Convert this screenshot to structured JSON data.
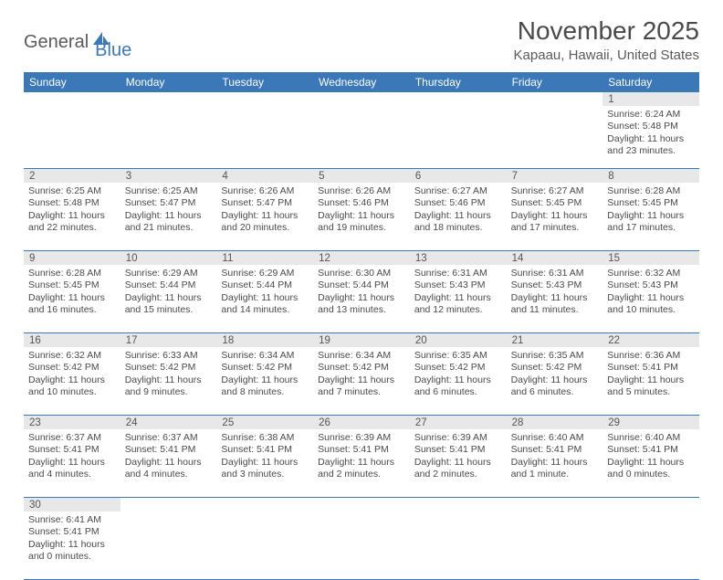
{
  "logo": {
    "text1": "General",
    "text2": "Blue"
  },
  "title": "November 2025",
  "location": "Kapaau, Hawaii, United States",
  "colors": {
    "header_bg": "#3b78b8",
    "header_text": "#ffffff",
    "daynum_bg": "#e8e8e8",
    "text": "#4a4a4a",
    "border": "#3b78b8"
  },
  "day_headers": [
    "Sunday",
    "Monday",
    "Tuesday",
    "Wednesday",
    "Thursday",
    "Friday",
    "Saturday"
  ],
  "weeks": [
    [
      null,
      null,
      null,
      null,
      null,
      null,
      {
        "n": "1",
        "sunrise": "6:24 AM",
        "sunset": "5:48 PM",
        "daylight": "11 hours and 23 minutes."
      }
    ],
    [
      {
        "n": "2",
        "sunrise": "6:25 AM",
        "sunset": "5:48 PM",
        "daylight": "11 hours and 22 minutes."
      },
      {
        "n": "3",
        "sunrise": "6:25 AM",
        "sunset": "5:47 PM",
        "daylight": "11 hours and 21 minutes."
      },
      {
        "n": "4",
        "sunrise": "6:26 AM",
        "sunset": "5:47 PM",
        "daylight": "11 hours and 20 minutes."
      },
      {
        "n": "5",
        "sunrise": "6:26 AM",
        "sunset": "5:46 PM",
        "daylight": "11 hours and 19 minutes."
      },
      {
        "n": "6",
        "sunrise": "6:27 AM",
        "sunset": "5:46 PM",
        "daylight": "11 hours and 18 minutes."
      },
      {
        "n": "7",
        "sunrise": "6:27 AM",
        "sunset": "5:45 PM",
        "daylight": "11 hours and 17 minutes."
      },
      {
        "n": "8",
        "sunrise": "6:28 AM",
        "sunset": "5:45 PM",
        "daylight": "11 hours and 17 minutes."
      }
    ],
    [
      {
        "n": "9",
        "sunrise": "6:28 AM",
        "sunset": "5:45 PM",
        "daylight": "11 hours and 16 minutes."
      },
      {
        "n": "10",
        "sunrise": "6:29 AM",
        "sunset": "5:44 PM",
        "daylight": "11 hours and 15 minutes."
      },
      {
        "n": "11",
        "sunrise": "6:29 AM",
        "sunset": "5:44 PM",
        "daylight": "11 hours and 14 minutes."
      },
      {
        "n": "12",
        "sunrise": "6:30 AM",
        "sunset": "5:44 PM",
        "daylight": "11 hours and 13 minutes."
      },
      {
        "n": "13",
        "sunrise": "6:31 AM",
        "sunset": "5:43 PM",
        "daylight": "11 hours and 12 minutes."
      },
      {
        "n": "14",
        "sunrise": "6:31 AM",
        "sunset": "5:43 PM",
        "daylight": "11 hours and 11 minutes."
      },
      {
        "n": "15",
        "sunrise": "6:32 AM",
        "sunset": "5:43 PM",
        "daylight": "11 hours and 10 minutes."
      }
    ],
    [
      {
        "n": "16",
        "sunrise": "6:32 AM",
        "sunset": "5:42 PM",
        "daylight": "11 hours and 10 minutes."
      },
      {
        "n": "17",
        "sunrise": "6:33 AM",
        "sunset": "5:42 PM",
        "daylight": "11 hours and 9 minutes."
      },
      {
        "n": "18",
        "sunrise": "6:34 AM",
        "sunset": "5:42 PM",
        "daylight": "11 hours and 8 minutes."
      },
      {
        "n": "19",
        "sunrise": "6:34 AM",
        "sunset": "5:42 PM",
        "daylight": "11 hours and 7 minutes."
      },
      {
        "n": "20",
        "sunrise": "6:35 AM",
        "sunset": "5:42 PM",
        "daylight": "11 hours and 6 minutes."
      },
      {
        "n": "21",
        "sunrise": "6:35 AM",
        "sunset": "5:42 PM",
        "daylight": "11 hours and 6 minutes."
      },
      {
        "n": "22",
        "sunrise": "6:36 AM",
        "sunset": "5:41 PM",
        "daylight": "11 hours and 5 minutes."
      }
    ],
    [
      {
        "n": "23",
        "sunrise": "6:37 AM",
        "sunset": "5:41 PM",
        "daylight": "11 hours and 4 minutes."
      },
      {
        "n": "24",
        "sunrise": "6:37 AM",
        "sunset": "5:41 PM",
        "daylight": "11 hours and 4 minutes."
      },
      {
        "n": "25",
        "sunrise": "6:38 AM",
        "sunset": "5:41 PM",
        "daylight": "11 hours and 3 minutes."
      },
      {
        "n": "26",
        "sunrise": "6:39 AM",
        "sunset": "5:41 PM",
        "daylight": "11 hours and 2 minutes."
      },
      {
        "n": "27",
        "sunrise": "6:39 AM",
        "sunset": "5:41 PM",
        "daylight": "11 hours and 2 minutes."
      },
      {
        "n": "28",
        "sunrise": "6:40 AM",
        "sunset": "5:41 PM",
        "daylight": "11 hours and 1 minute."
      },
      {
        "n": "29",
        "sunrise": "6:40 AM",
        "sunset": "5:41 PM",
        "daylight": "11 hours and 0 minutes."
      }
    ],
    [
      {
        "n": "30",
        "sunrise": "6:41 AM",
        "sunset": "5:41 PM",
        "daylight": "11 hours and 0 minutes."
      },
      null,
      null,
      null,
      null,
      null,
      null
    ]
  ],
  "labels": {
    "sunrise": "Sunrise:",
    "sunset": "Sunset:",
    "daylight": "Daylight:"
  }
}
